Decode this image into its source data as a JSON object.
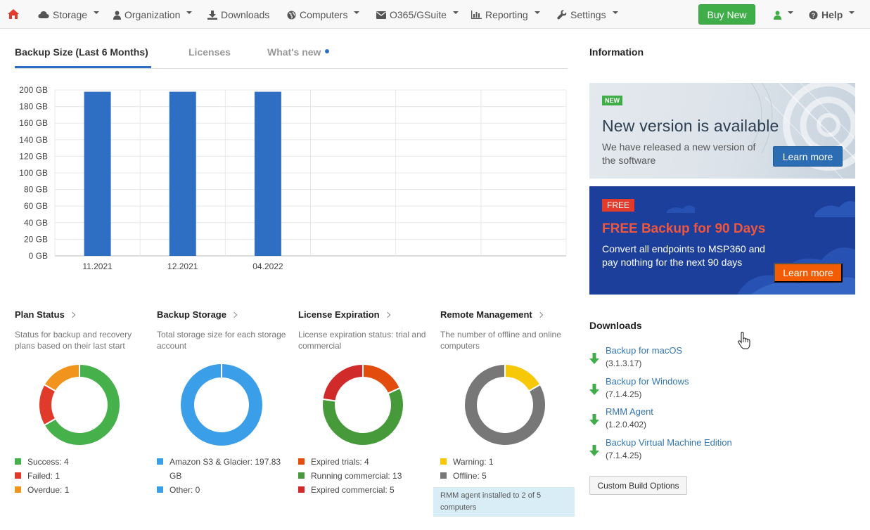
{
  "navbar": {
    "items": [
      {
        "label": "Storage",
        "icon": "cloud-icon"
      },
      {
        "label": "Organization",
        "icon": "user-icon"
      },
      {
        "label": "Downloads",
        "icon": "download-icon"
      },
      {
        "label": "Computers",
        "icon": "globe-icon"
      },
      {
        "label": "O365/GSuite",
        "icon": "envelope-icon"
      },
      {
        "label": "Reporting",
        "icon": "bar-chart-icon"
      },
      {
        "label": "Settings",
        "icon": "wrench-icon"
      }
    ],
    "buy_label": "Buy New",
    "help_label": "Help",
    "colors": {
      "home": "#e23b2b",
      "buy": "#3fae49",
      "user": "#3fae49"
    }
  },
  "tabs": [
    {
      "label": "Backup Size (Last 6 Months)",
      "active": true
    },
    {
      "label": "Licenses",
      "active": false
    },
    {
      "label": "What's new",
      "active": false,
      "dot": true
    }
  ],
  "chart_data": {
    "type": "bar",
    "categories": [
      "11.2021",
      "12.2021",
      "04.2022",
      "",
      "",
      ""
    ],
    "values": [
      197.83,
      197.83,
      197.83,
      null,
      null,
      null
    ],
    "yticks": [
      "200 GB",
      "180 GB",
      "160 GB",
      "140 GB",
      "120 GB",
      "100 GB",
      "80 GB",
      "60 GB",
      "40 GB",
      "20 GB",
      "0 GB"
    ],
    "ylim": [
      0,
      200
    ],
    "grid": true,
    "bar_color": "#2e6fc4"
  },
  "cards": [
    {
      "title": "Plan Status",
      "desc": "Status for backup and recovery plans based on their last start",
      "segments": [
        {
          "label": "Success: 4",
          "value": 4,
          "color": "#46b04a"
        },
        {
          "label": "Failed: 1",
          "value": 1,
          "color": "#e03a2a"
        },
        {
          "label": "Overdue: 1",
          "value": 1,
          "color": "#f0941e"
        }
      ]
    },
    {
      "title": "Backup Storage",
      "desc": "Total storage size for each storage account",
      "segments": [
        {
          "label": "Amazon S3 & Glacier: 197.83 GB",
          "value": 197.83,
          "color": "#3a9ee8"
        },
        {
          "label": "Other: 0",
          "value": 0,
          "color": "#3a9ee8"
        }
      ]
    },
    {
      "title": "License Expiration",
      "desc": "License expiration status: trial and commercial",
      "segments": [
        {
          "label": "Expired trials: 4",
          "value": 4,
          "color": "#e24d0d"
        },
        {
          "label": "Running commercial: 13",
          "value": 13,
          "color": "#479a3a"
        },
        {
          "label": "Expired commercial: 5",
          "value": 5,
          "color": "#d12a2a"
        }
      ]
    },
    {
      "title": "Remote Management",
      "desc": "The number of offline and online computers",
      "segments": [
        {
          "label": "Warning: 1",
          "value": 1,
          "color": "#f7c805"
        },
        {
          "label": "Offline: 5",
          "value": 5,
          "color": "#777777"
        }
      ],
      "note": "RMM agent installed to 2 of 5 computers"
    }
  ],
  "info": {
    "title": "Information",
    "banner1": {
      "badge": "NEW",
      "title": "New version is available",
      "text": "We have released a new version of the software",
      "button": "Learn more"
    },
    "banner2": {
      "badge": "FREE",
      "title": "FREE Backup for 90 Days",
      "text": "Convert all endpoints to MSP360 and pay nothing for the next 90 days",
      "button": "Learn more"
    }
  },
  "downloads": {
    "title": "Downloads",
    "items": [
      {
        "name": "Backup for macOS",
        "version": "(3.1.3.17)"
      },
      {
        "name": "Backup for Windows",
        "version": "(7.1.4.25)"
      },
      {
        "name": "RMM Agent",
        "version": "(1.2.0.402)"
      },
      {
        "name": "Backup Virtual Machine Edition",
        "version": "(7.1.4.25)"
      }
    ],
    "custom_button": "Custom Build Options"
  }
}
